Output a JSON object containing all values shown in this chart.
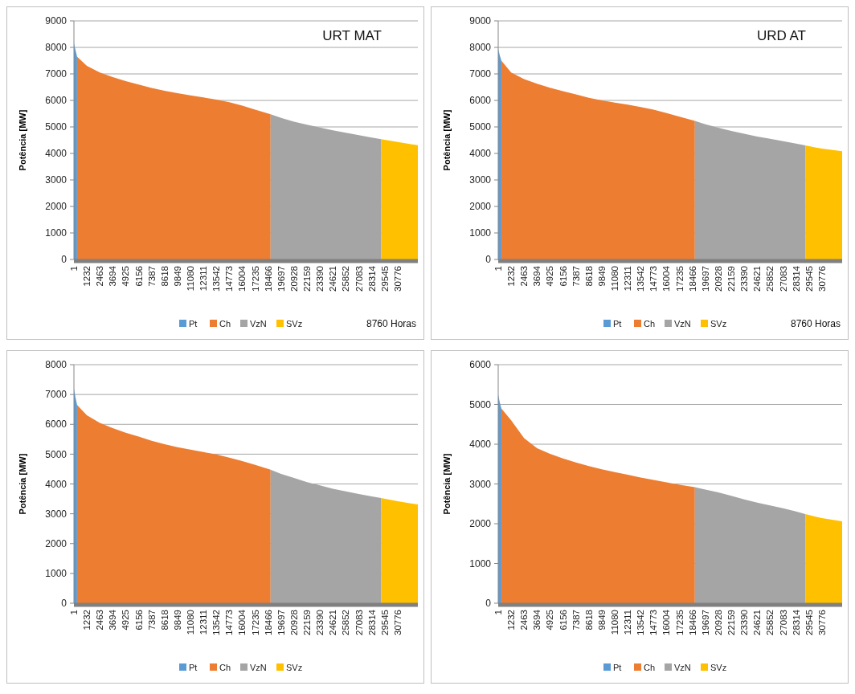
{
  "chart_data": [
    {
      "type": "area",
      "title": "URT MAT",
      "ylabel": "Potência [MW]",
      "annotations": [
        "8760 Horas"
      ],
      "xlim": [
        1,
        32700
      ],
      "xticks": [
        1,
        1232,
        2463,
        3694,
        4925,
        6156,
        7387,
        8618,
        9849,
        11080,
        12311,
        13542,
        14773,
        16004,
        17235,
        18466,
        19697,
        20928,
        22159,
        23390,
        24621,
        25852,
        27083,
        28314,
        29545,
        30776
      ],
      "ylim": [
        0,
        9000
      ],
      "yticks": [
        0,
        1000,
        2000,
        3000,
        4000,
        5000,
        6000,
        7000,
        8000,
        9000
      ],
      "grid": "y",
      "legend": "bottom",
      "series": [
        {
          "name": "Pt",
          "color": "#5b9bd5",
          "x": [
            1,
            150,
            300
          ],
          "values": [
            8150,
            7900,
            7650
          ]
        },
        {
          "name": "Ch",
          "color": "#ed7d31",
          "x": [
            300,
            1232,
            2463,
            3694,
            4925,
            6156,
            7387,
            8618,
            9849,
            11080,
            12311,
            13542,
            14773,
            16004,
            17235,
            18700
          ],
          "values": [
            7650,
            7300,
            7050,
            6880,
            6730,
            6600,
            6470,
            6360,
            6270,
            6190,
            6110,
            6030,
            5930,
            5800,
            5650,
            5480
          ]
        },
        {
          "name": "VzN",
          "color": "#a5a5a5",
          "x": [
            18700,
            19697,
            20928,
            22159,
            23390,
            24621,
            25852,
            27083,
            28314,
            29200
          ],
          "values": [
            5480,
            5340,
            5200,
            5080,
            4980,
            4870,
            4780,
            4690,
            4600,
            4540
          ]
        },
        {
          "name": "SVz",
          "color": "#ffc000",
          "x": [
            29200,
            30776,
            32700
          ],
          "values": [
            4540,
            4430,
            4310
          ]
        }
      ]
    },
    {
      "type": "area",
      "title": "URD AT",
      "ylabel": "Potência [MW]",
      "annotations": [
        "8760 Horas"
      ],
      "xlim": [
        1,
        32700
      ],
      "xticks": [
        1,
        1232,
        2463,
        3694,
        4925,
        6156,
        7387,
        8618,
        9849,
        11080,
        12311,
        13542,
        14773,
        16004,
        17235,
        18466,
        19697,
        20928,
        22159,
        23390,
        24621,
        25852,
        27083,
        28314,
        29545,
        30776
      ],
      "ylim": [
        0,
        9000
      ],
      "yticks": [
        0,
        1000,
        2000,
        3000,
        4000,
        5000,
        6000,
        7000,
        8000,
        9000
      ],
      "grid": "y",
      "legend": "bottom",
      "series": [
        {
          "name": "Pt",
          "color": "#5b9bd5",
          "x": [
            1,
            150,
            300
          ],
          "values": [
            7950,
            7700,
            7500
          ]
        },
        {
          "name": "Ch",
          "color": "#ed7d31",
          "x": [
            300,
            1232,
            2463,
            3694,
            4925,
            6156,
            7387,
            8618,
            9849,
            11080,
            12311,
            13542,
            14773,
            16004,
            17235,
            18700
          ],
          "values": [
            7500,
            7050,
            6800,
            6630,
            6480,
            6350,
            6230,
            6100,
            6000,
            5920,
            5840,
            5750,
            5650,
            5520,
            5390,
            5230
          ]
        },
        {
          "name": "VzN",
          "color": "#a5a5a5",
          "x": [
            18700,
            19697,
            20928,
            22159,
            23390,
            24621,
            25852,
            27083,
            28314,
            29200
          ],
          "values": [
            5230,
            5100,
            4970,
            4850,
            4740,
            4640,
            4550,
            4460,
            4370,
            4300
          ]
        },
        {
          "name": "SVz",
          "color": "#ffc000",
          "x": [
            29200,
            30776,
            32700
          ],
          "values": [
            4300,
            4180,
            4080
          ]
        }
      ]
    },
    {
      "type": "area",
      "ylabel": "Potência [MW]",
      "xlim": [
        1,
        32700
      ],
      "xticks": [
        1,
        1232,
        2463,
        3694,
        4925,
        6156,
        7387,
        8618,
        9849,
        11080,
        12311,
        13542,
        14773,
        16004,
        17235,
        18466,
        19697,
        20928,
        22159,
        23390,
        24621,
        25852,
        27083,
        28314,
        29545,
        30776
      ],
      "ylim": [
        0,
        8000
      ],
      "yticks": [
        0,
        1000,
        2000,
        3000,
        4000,
        5000,
        6000,
        7000,
        8000
      ],
      "grid": "y",
      "legend": "bottom",
      "series": [
        {
          "name": "Pt",
          "color": "#5b9bd5",
          "x": [
            1,
            150,
            300
          ],
          "values": [
            7200,
            6900,
            6650
          ]
        },
        {
          "name": "Ch",
          "color": "#ed7d31",
          "x": [
            300,
            1232,
            2463,
            3694,
            4925,
            6156,
            7387,
            8618,
            9849,
            11080,
            12311,
            13542,
            14773,
            16004,
            17235,
            18700
          ],
          "values": [
            6650,
            6300,
            6050,
            5870,
            5720,
            5590,
            5450,
            5330,
            5230,
            5150,
            5070,
            4990,
            4880,
            4770,
            4640,
            4480
          ]
        },
        {
          "name": "VzN",
          "color": "#a5a5a5",
          "x": [
            18700,
            19697,
            20928,
            22159,
            23390,
            24621,
            25852,
            27083,
            28314,
            29200
          ],
          "values": [
            4480,
            4340,
            4200,
            4060,
            3950,
            3840,
            3750,
            3660,
            3580,
            3530
          ]
        },
        {
          "name": "SVz",
          "color": "#ffc000",
          "x": [
            29200,
            30776,
            32700
          ],
          "values": [
            3530,
            3420,
            3310
          ]
        }
      ]
    },
    {
      "type": "area",
      "ylabel": "Potência [MW]",
      "xlim": [
        1,
        32700
      ],
      "xticks": [
        1,
        1232,
        2463,
        3694,
        4925,
        6156,
        7387,
        8618,
        9849,
        11080,
        12311,
        13542,
        14773,
        16004,
        17235,
        18466,
        19697,
        20928,
        22159,
        23390,
        24621,
        25852,
        27083,
        28314,
        29545,
        30776
      ],
      "ylim": [
        0,
        6000
      ],
      "yticks": [
        0,
        1000,
        2000,
        3000,
        4000,
        5000,
        6000
      ],
      "grid": "y",
      "legend": "bottom",
      "series": [
        {
          "name": "Pt",
          "color": "#5b9bd5",
          "x": [
            1,
            150,
            300
          ],
          "values": [
            5250,
            5050,
            4900
          ]
        },
        {
          "name": "Ch",
          "color": "#ed7d31",
          "x": [
            300,
            1232,
            2463,
            3694,
            4925,
            6156,
            7387,
            8618,
            9849,
            11080,
            12311,
            13542,
            14773,
            16004,
            17235,
            18700
          ],
          "values": [
            4900,
            4600,
            4150,
            3900,
            3760,
            3640,
            3540,
            3450,
            3370,
            3300,
            3230,
            3160,
            3100,
            3040,
            2980,
            2920
          ]
        },
        {
          "name": "VzN",
          "color": "#a5a5a5",
          "x": [
            18700,
            19697,
            20928,
            22159,
            23390,
            24621,
            25852,
            27083,
            28314,
            29200
          ],
          "values": [
            2920,
            2860,
            2790,
            2700,
            2610,
            2530,
            2460,
            2390,
            2310,
            2240
          ]
        },
        {
          "name": "SVz",
          "color": "#ffc000",
          "x": [
            29200,
            30776,
            32700
          ],
          "values": [
            2240,
            2140,
            2060
          ]
        }
      ]
    }
  ]
}
